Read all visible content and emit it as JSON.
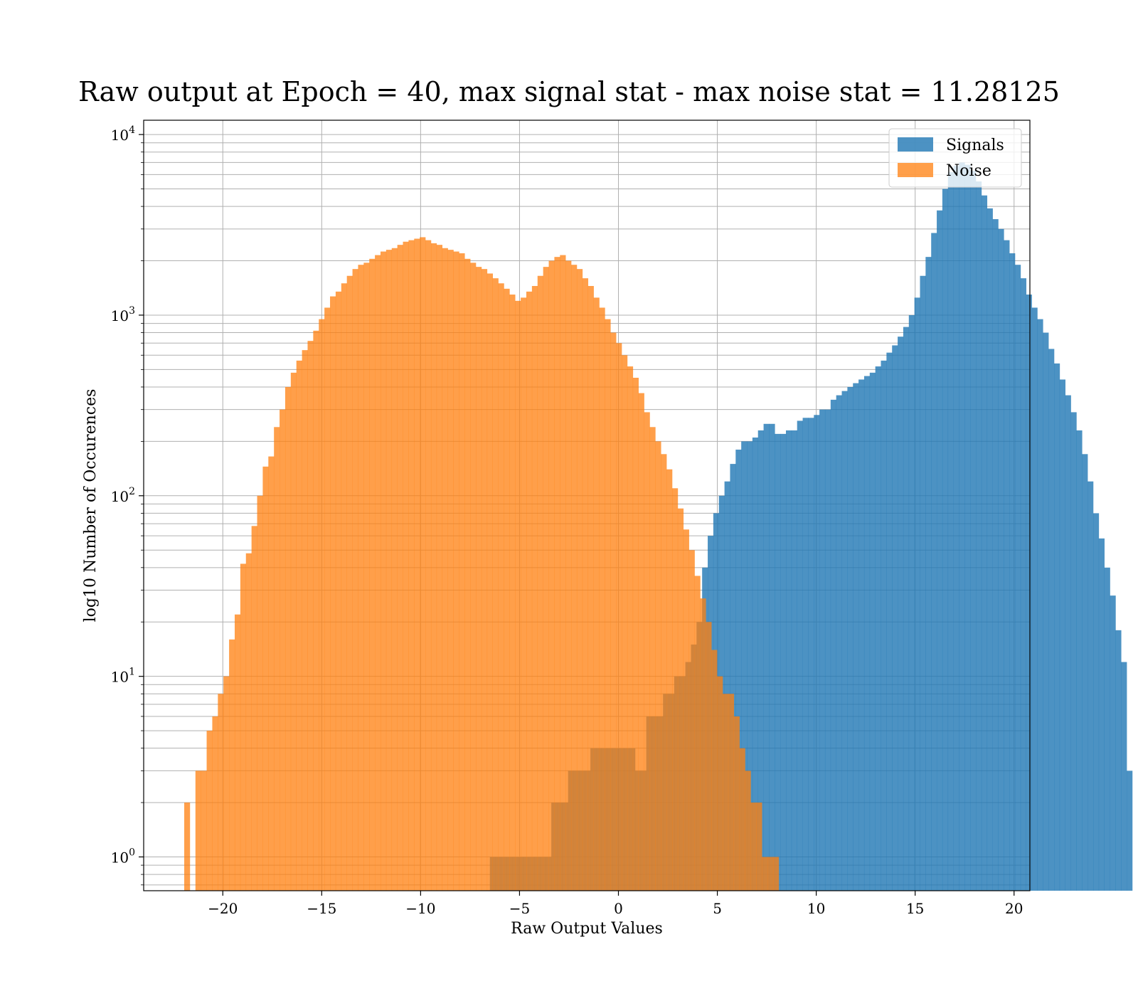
{
  "chart_data": {
    "type": "bar",
    "title": "Raw output at Epoch = 40, max signal stat - max noise stat = 11.28125",
    "xlabel": "Raw Output Values",
    "ylabel": "log10 Number of Occurences",
    "xlim": [
      -24.0,
      20.8
    ],
    "ylim": [
      0.65,
      12000
    ],
    "yscale": "log",
    "grid": true,
    "legend_position": "top-right",
    "x_ticks": [
      -20,
      -15,
      -10,
      -5,
      0,
      5,
      10,
      15,
      20
    ],
    "x_tick_labels": [
      "−20",
      "−15",
      "−10",
      "−5",
      "0",
      "5",
      "10",
      "15",
      "20"
    ],
    "y_ticks": [
      {
        "value": 1,
        "base": "10",
        "exp": "0"
      },
      {
        "value": 10,
        "base": "10",
        "exp": "1"
      },
      {
        "value": 100,
        "base": "10",
        "exp": "2"
      },
      {
        "value": 1000,
        "base": "10",
        "exp": "3"
      },
      {
        "value": 10000,
        "base": "10",
        "exp": "4"
      }
    ],
    "series": [
      {
        "name": "Signals",
        "color": "#1f77b4",
        "opacity": 0.8,
        "bin_start": -6.5,
        "bin_width": 0.2824,
        "values": [
          1,
          1,
          1,
          1,
          1,
          1,
          1,
          1,
          1,
          1,
          1,
          2,
          2,
          2,
          3,
          3,
          3,
          3,
          4,
          4,
          4,
          4,
          4,
          4,
          4,
          4,
          3,
          3,
          6,
          6,
          6,
          8,
          8,
          10,
          10,
          12,
          15,
          20,
          40,
          60,
          80,
          100,
          120,
          150,
          180,
          200,
          200,
          210,
          230,
          250,
          250,
          220,
          220,
          230,
          230,
          260,
          270,
          270,
          280,
          300,
          300,
          340,
          360,
          380,
          400,
          420,
          440,
          460,
          480,
          520,
          560,
          620,
          680,
          760,
          860,
          1000,
          1250,
          1650,
          2100,
          2850,
          3800,
          5000,
          6200,
          6700,
          7000,
          6800,
          6300,
          5500,
          4600,
          3900,
          3400,
          3000,
          2600,
          2200,
          1900,
          1600,
          1300,
          1100,
          950,
          800,
          650,
          540,
          440,
          360,
          290,
          230,
          170,
          120,
          80,
          58,
          40,
          28,
          18,
          12,
          3
        ]
      },
      {
        "name": "Noise",
        "color": "#ff7f0e",
        "opacity": 0.75,
        "bin_start": -21.95,
        "bin_width": 0.2835,
        "values": [
          2,
          0,
          3,
          3,
          5,
          6,
          8,
          10,
          16,
          22,
          42,
          48,
          68,
          100,
          145,
          165,
          240,
          300,
          400,
          480,
          560,
          640,
          720,
          820,
          950,
          1100,
          1270,
          1350,
          1500,
          1650,
          1800,
          1900,
          1950,
          2050,
          2150,
          2250,
          2300,
          2350,
          2450,
          2550,
          2600,
          2650,
          2700,
          2600,
          2500,
          2450,
          2350,
          2300,
          2250,
          2200,
          2050,
          1950,
          1850,
          1800,
          1700,
          1600,
          1500,
          1400,
          1300,
          1200,
          1250,
          1350,
          1450,
          1650,
          1850,
          2000,
          2100,
          2150,
          2000,
          1900,
          1800,
          1600,
          1450,
          1250,
          1100,
          950,
          800,
          700,
          600,
          520,
          450,
          370,
          290,
          240,
          200,
          170,
          140,
          110,
          85,
          65,
          50,
          36,
          27,
          20,
          14,
          10,
          8,
          8,
          6,
          4,
          3,
          2,
          2,
          1,
          1,
          1
        ]
      }
    ]
  }
}
